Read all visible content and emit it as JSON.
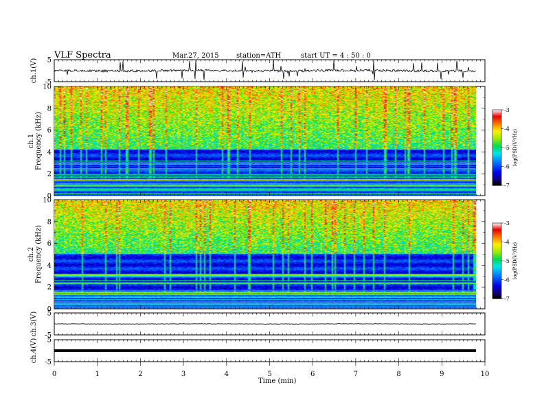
{
  "header": {
    "title": "VLF  Spectra",
    "date": "Mar.27, 2015",
    "station": "station=ATH",
    "start": "start  UT  =   4  : 50 : 0"
  },
  "chart_data": [
    {
      "type": "line",
      "name": "ch1-waveform",
      "ylabel": "ch.1(V)",
      "ylim": [
        -5,
        5
      ],
      "yticks": [
        "5",
        "-5"
      ],
      "baseline": 0,
      "noise": 0.5,
      "spikes": 2.5
    },
    {
      "type": "heatmap",
      "name": "ch1-spectrogram",
      "ylabel_channel": "ch.1",
      "ylabel": "Frequency  (kHz)",
      "ylim": [
        0,
        10
      ],
      "yticks": [
        "0",
        "2",
        "4",
        "6",
        "8",
        "10"
      ],
      "xlim_data": [
        0,
        9.8
      ],
      "colorbar": {
        "label": "log(PSD(V²/Hz)",
        "range": [
          -7,
          -3
        ],
        "ticks": [
          "-3",
          "-4",
          "-5",
          "-6",
          "-7"
        ]
      },
      "noise_floor_khz": 4.2
    },
    {
      "type": "heatmap",
      "name": "ch2-spectrogram",
      "ylabel_channel": "ch.2",
      "ylabel": "Frequency  (kHz)",
      "ylim": [
        0,
        10
      ],
      "yticks": [
        "0",
        "2",
        "4",
        "6",
        "8",
        "10"
      ],
      "xlim_data": [
        0,
        9.8
      ],
      "colorbar": {
        "label": "log(PSD(V²/Hz)",
        "range": [
          -7,
          -3
        ],
        "ticks": [
          "-3",
          "-4",
          "-5",
          "-6",
          "-7"
        ]
      },
      "noise_floor_khz": 5.0
    },
    {
      "type": "line",
      "name": "ch3-waveform",
      "ylabel": "ch.3(V)",
      "ylim": [
        -5,
        5
      ],
      "yticks": [
        "5",
        "-5"
      ],
      "baseline": 0,
      "noise": 0.1
    },
    {
      "type": "line",
      "name": "ch4-waveform",
      "ylabel": "ch.4(V)",
      "ylim": [
        -5,
        5
      ],
      "yticks": [
        "5",
        "-5"
      ],
      "baseline": 0,
      "noise": 0.05
    }
  ],
  "xaxis": {
    "label": "Time  (min)",
    "xlim": [
      0,
      10
    ],
    "ticks": [
      "0",
      "1",
      "2",
      "3",
      "4",
      "5",
      "6",
      "7",
      "8",
      "9",
      "10"
    ]
  }
}
